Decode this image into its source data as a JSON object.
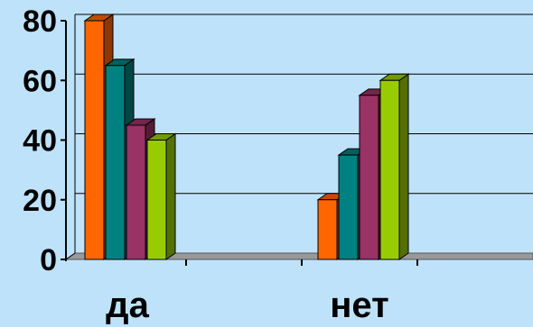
{
  "chart_data": {
    "type": "bar",
    "bar_style": "3d-clustered",
    "categories": [
      "да",
      "нет"
    ],
    "series": [
      {
        "color": "#ff6600",
        "values": [
          80,
          20
        ]
      },
      {
        "color": "#008080",
        "values": [
          65,
          35
        ]
      },
      {
        "color": "#993366",
        "values": [
          45,
          55
        ]
      },
      {
        "color": "#99cc00",
        "values": [
          40,
          60
        ]
      }
    ],
    "y_ticks": [
      "0",
      "20",
      "40",
      "60",
      "80"
    ],
    "ylim": [
      0,
      80
    ],
    "grid": true,
    "legend": "none",
    "colors": {
      "background": "#bfe2fb",
      "floor": "#999999",
      "gridline": "#000000"
    }
  }
}
